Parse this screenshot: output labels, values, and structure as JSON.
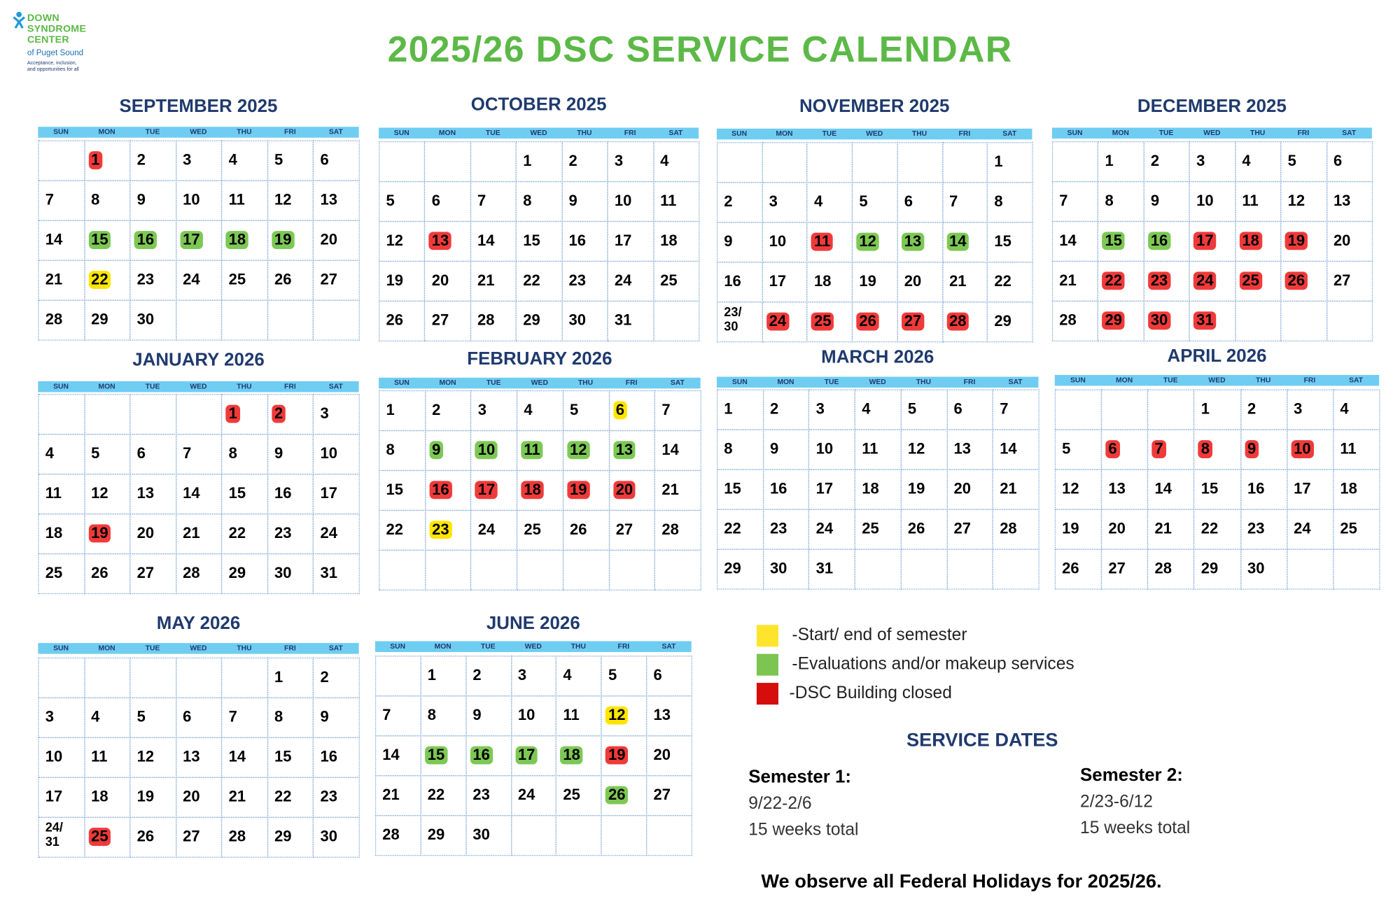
{
  "logo": {
    "name": [
      "DOWN",
      "SYNDROME",
      "CENTER"
    ],
    "place": "of Puget Sound",
    "tagline": [
      "Acceptance, inclusion,",
      "and opportunities for all"
    ]
  },
  "title": "2025/26 DSC SERVICE CALENDAR",
  "weekdays": [
    "SUN",
    "MON",
    "TUE",
    "WED",
    "THU",
    "FRI",
    "SAT"
  ],
  "months": [
    {
      "name": "SEPTEMBER 2025",
      "weeks": [
        [
          null,
          {
            "day": "1",
            "status": "closed"
          },
          "2",
          "3",
          "4",
          "5",
          "6"
        ],
        [
          "7",
          "8",
          "9",
          "10",
          "11",
          "12",
          "13"
        ],
        [
          "14",
          {
            "day": "15",
            "status": "makeup"
          },
          {
            "day": "16",
            "status": "makeup"
          },
          {
            "day": "17",
            "status": "makeup"
          },
          {
            "day": "18",
            "status": "makeup"
          },
          {
            "day": "19",
            "status": "makeup"
          },
          "20"
        ],
        [
          "21",
          {
            "day": "22",
            "status": "semester"
          },
          "23",
          "24",
          "25",
          "26",
          "27"
        ],
        [
          "28",
          "29",
          "30",
          null,
          null,
          null,
          null
        ]
      ]
    },
    {
      "name": "OCTOBER 2025",
      "weeks": [
        [
          null,
          null,
          null,
          "1",
          "2",
          "3",
          "4"
        ],
        [
          "5",
          "6",
          "7",
          "8",
          "9",
          "10",
          "11"
        ],
        [
          "12",
          {
            "day": "13",
            "status": "closed"
          },
          "14",
          "15",
          "16",
          "17",
          "18"
        ],
        [
          "19",
          "20",
          "21",
          "22",
          "23",
          "24",
          "25"
        ],
        [
          "26",
          "27",
          "28",
          "29",
          "30",
          "31",
          null
        ]
      ]
    },
    {
      "name": "NOVEMBER 2025",
      "weeks": [
        [
          null,
          null,
          null,
          null,
          null,
          null,
          "1"
        ],
        [
          "2",
          "3",
          "4",
          "5",
          "6",
          "7",
          "8"
        ],
        [
          "9",
          "10",
          {
            "day": "11",
            "status": "closed"
          },
          {
            "day": "12",
            "status": "makeup"
          },
          {
            "day": "13",
            "status": "makeup"
          },
          {
            "day": "14",
            "status": "makeup"
          },
          "15"
        ],
        [
          "16",
          "17",
          "18",
          "19",
          "20",
          "21",
          "22"
        ],
        [
          "23/ 30",
          {
            "day": "24",
            "status": "closed"
          },
          {
            "day": "25",
            "status": "closed"
          },
          {
            "day": "26",
            "status": "closed"
          },
          {
            "day": "27",
            "status": "closed"
          },
          {
            "day": "28",
            "status": "closed"
          },
          "29"
        ]
      ]
    },
    {
      "name": "DECEMBER 2025",
      "weeks": [
        [
          null,
          "1",
          "2",
          "3",
          "4",
          "5",
          "6"
        ],
        [
          "7",
          "8",
          "9",
          "10",
          "11",
          "12",
          "13"
        ],
        [
          "14",
          {
            "day": "15",
            "status": "makeup"
          },
          {
            "day": "16",
            "status": "makeup"
          },
          {
            "day": "17",
            "status": "closed"
          },
          {
            "day": "18",
            "status": "closed"
          },
          {
            "day": "19",
            "status": "closed"
          },
          "20"
        ],
        [
          "21",
          {
            "day": "22",
            "status": "closed"
          },
          {
            "day": "23",
            "status": "closed"
          },
          {
            "day": "24",
            "status": "closed"
          },
          {
            "day": "25",
            "status": "closed"
          },
          {
            "day": "26",
            "status": "closed"
          },
          "27"
        ],
        [
          "28",
          {
            "day": "29",
            "status": "closed"
          },
          {
            "day": "30",
            "status": "closed"
          },
          {
            "day": "31",
            "status": "closed"
          },
          null,
          null,
          null
        ]
      ]
    },
    {
      "name": "JANUARY 2026",
      "weeks": [
        [
          null,
          null,
          null,
          null,
          {
            "day": "1",
            "status": "closed"
          },
          {
            "day": "2",
            "status": "closed"
          },
          "3"
        ],
        [
          "4",
          "5",
          "6",
          "7",
          "8",
          "9",
          "10"
        ],
        [
          "11",
          "12",
          "13",
          "14",
          "15",
          "16",
          "17"
        ],
        [
          "18",
          {
            "day": "19",
            "status": "closed"
          },
          "20",
          "21",
          "22",
          "23",
          "24"
        ],
        [
          "25",
          "26",
          "27",
          "28",
          "29",
          "30",
          "31"
        ]
      ]
    },
    {
      "name": "FEBRUARY 2026",
      "weeks": [
        [
          "1",
          "2",
          "3",
          "4",
          "5",
          {
            "day": "6",
            "status": "semester"
          },
          "7"
        ],
        [
          "8",
          {
            "day": "9",
            "status": "makeup"
          },
          {
            "day": "10",
            "status": "makeup"
          },
          {
            "day": "11",
            "status": "makeup"
          },
          {
            "day": "12",
            "status": "makeup"
          },
          {
            "day": "13",
            "status": "makeup"
          },
          "14"
        ],
        [
          "15",
          {
            "day": "16",
            "status": "closed"
          },
          {
            "day": "17",
            "status": "closed"
          },
          {
            "day": "18",
            "status": "closed"
          },
          {
            "day": "19",
            "status": "closed"
          },
          {
            "day": "20",
            "status": "closed"
          },
          "21"
        ],
        [
          "22",
          {
            "day": "23",
            "status": "semester"
          },
          "24",
          "25",
          "26",
          "27",
          "28"
        ],
        [
          null,
          null,
          null,
          null,
          null,
          null,
          null
        ]
      ]
    },
    {
      "name": "MARCH 2026",
      "weeks": [
        [
          "1",
          "2",
          "3",
          "4",
          "5",
          "6",
          "7"
        ],
        [
          "8",
          "9",
          "10",
          "11",
          "12",
          "13",
          "14"
        ],
        [
          "15",
          "16",
          "17",
          "18",
          "19",
          "20",
          "21"
        ],
        [
          "22",
          "23",
          "24",
          "25",
          "26",
          "27",
          "28"
        ],
        [
          "29",
          "30",
          "31",
          null,
          null,
          null,
          null
        ]
      ]
    },
    {
      "name": "APRIL 2026",
      "weeks": [
        [
          null,
          null,
          null,
          "1",
          "2",
          "3",
          "4"
        ],
        [
          "5",
          {
            "day": "6",
            "status": "closed"
          },
          {
            "day": "7",
            "status": "closed"
          },
          {
            "day": "8",
            "status": "closed"
          },
          {
            "day": "9",
            "status": "closed"
          },
          {
            "day": "10",
            "status": "closed"
          },
          "11"
        ],
        [
          "12",
          "13",
          "14",
          "15",
          "16",
          "17",
          "18"
        ],
        [
          "19",
          "20",
          "21",
          "22",
          "23",
          "24",
          "25"
        ],
        [
          "26",
          "27",
          "28",
          "29",
          "30",
          null,
          null
        ]
      ]
    },
    {
      "name": "MAY 2026",
      "weeks": [
        [
          null,
          null,
          null,
          null,
          null,
          "1",
          "2"
        ],
        [
          "3",
          "4",
          "5",
          "6",
          "7",
          "8",
          "9"
        ],
        [
          "10",
          "11",
          "12",
          "13",
          "14",
          "15",
          "16"
        ],
        [
          "17",
          "18",
          "19",
          "20",
          "21",
          "22",
          "23"
        ],
        [
          "24/ 31",
          {
            "day": "25",
            "status": "closed"
          },
          "26",
          "27",
          "28",
          "29",
          "30"
        ]
      ]
    },
    {
      "name": "JUNE 2026",
      "weeks": [
        [
          null,
          "1",
          "2",
          "3",
          "4",
          "5",
          "6"
        ],
        [
          "7",
          "8",
          "9",
          "10",
          "11",
          {
            "day": "12",
            "status": "semester"
          },
          "13"
        ],
        [
          "14",
          {
            "day": "15",
            "status": "makeup"
          },
          {
            "day": "16",
            "status": "makeup"
          },
          {
            "day": "17",
            "status": "makeup"
          },
          {
            "day": "18",
            "status": "makeup"
          },
          {
            "day": "19",
            "status": "closed"
          },
          "20"
        ],
        [
          "21",
          "22",
          "23",
          "24",
          "25",
          {
            "day": "26",
            "status": "makeup"
          },
          "27"
        ],
        [
          "28",
          "29",
          "30",
          null,
          null,
          null,
          null
        ]
      ]
    }
  ],
  "legend": [
    {
      "status": "semester",
      "color": "#ffe42e",
      "label": "-Start/ end of semester"
    },
    {
      "status": "makeup",
      "color": "#7cc551",
      "label": "-Evaluations and/or makeup services"
    },
    {
      "status": "closed",
      "color": "#d50d0d",
      "label": "-DSC Building closed"
    }
  ],
  "highlight_colors": {
    "semester": "#ffe500",
    "makeup": "#7dc855",
    "closed": "#f03a3a"
  },
  "service_dates": {
    "heading": "SERVICE DATES",
    "semesters": [
      {
        "name": "Semester 1:",
        "dates": "9/22-2/6",
        "length": "15 weeks total"
      },
      {
        "name": "Semester 2:",
        "dates": "2/23-6/12",
        "length": "15 weeks total"
      }
    ]
  },
  "footer": "We observe all Federal Holidays for 2025/26."
}
